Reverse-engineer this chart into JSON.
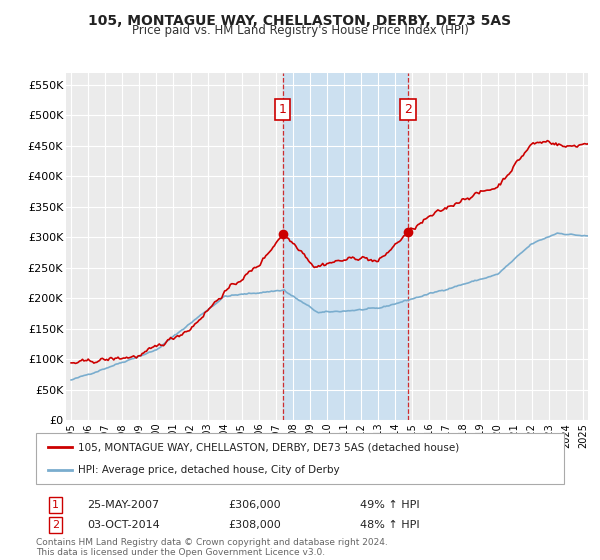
{
  "title": "105, MONTAGUE WAY, CHELLASTON, DERBY, DE73 5AS",
  "subtitle": "Price paid vs. HM Land Registry's House Price Index (HPI)",
  "ylabel_ticks": [
    "£0",
    "£50K",
    "£100K",
    "£150K",
    "£200K",
    "£250K",
    "£300K",
    "£350K",
    "£400K",
    "£450K",
    "£500K",
    "£550K"
  ],
  "ytick_values": [
    0,
    50000,
    100000,
    150000,
    200000,
    250000,
    300000,
    350000,
    400000,
    450000,
    500000,
    550000
  ],
  "ylim": [
    0,
    570000
  ],
  "background_color": "#ffffff",
  "plot_bg_color": "#ebebeb",
  "grid_color": "#ffffff",
  "sale1_date": "25-MAY-2007",
  "sale1_price": 306000,
  "sale1_label": "49% ↑ HPI",
  "sale2_date": "03-OCT-2014",
  "sale2_price": 308000,
  "sale2_label": "48% ↑ HPI",
  "sale1_x": 2007.4,
  "sale2_x": 2014.75,
  "legend_label1": "105, MONTAGUE WAY, CHELLASTON, DERBY, DE73 5AS (detached house)",
  "legend_label2": "HPI: Average price, detached house, City of Derby",
  "footnote": "Contains HM Land Registry data © Crown copyright and database right 2024.\nThis data is licensed under the Open Government Licence v3.0.",
  "red_color": "#cc0000",
  "blue_color": "#7aadce",
  "shade_color": "#cce0f0"
}
